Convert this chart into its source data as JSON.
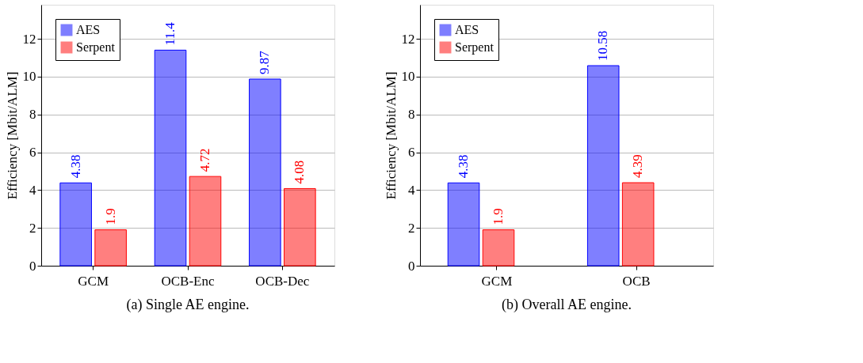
{
  "chart_data": [
    {
      "type": "bar",
      "categories": [
        "GCM",
        "OCB-Enc",
        "OCB-Dec"
      ],
      "ylabel": "Efficiency [Mbit/ALM]",
      "ylim": [
        0,
        13.8
      ],
      "yticks": [
        0,
        2,
        4,
        6,
        8,
        10,
        12
      ],
      "grid": "y",
      "legend": "top left",
      "data_labels": true,
      "annotations": [
        "(a) Single AE engine."
      ],
      "series": [
        {
          "name": "AES",
          "color": "#0000ff",
          "values": [
            4.38,
            11.4,
            9.87
          ]
        },
        {
          "name": "Serpent",
          "color": "#ff0000",
          "values": [
            1.9,
            4.72,
            4.08
          ]
        }
      ]
    },
    {
      "type": "bar",
      "categories": [
        "GCM",
        "OCB"
      ],
      "ylabel": "Efficiency [Mbit/ALM]",
      "ylim": [
        0,
        13.8
      ],
      "yticks": [
        0,
        2,
        4,
        6,
        8,
        10,
        12
      ],
      "grid": "y",
      "legend": "top left",
      "data_labels": true,
      "annotations": [
        "(b) Overall AE engine."
      ],
      "series": [
        {
          "name": "AES",
          "color": "#0000ff",
          "values": [
            4.38,
            10.58
          ]
        },
        {
          "name": "Serpent",
          "color": "#ff0000",
          "values": [
            1.9,
            4.39
          ]
        }
      ]
    }
  ]
}
